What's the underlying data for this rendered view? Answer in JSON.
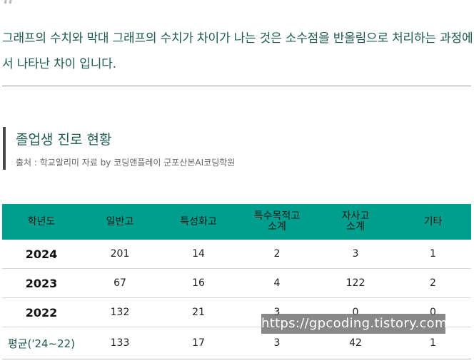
{
  "quote": {
    "mark": "“",
    "text": "그래프의 수치와 막대 그래프의 수치가 차이가 나는 것은 소수점을 반올림으로 처리하는 과정에서 나타난 차이 입니다."
  },
  "section": {
    "title": "졸업생 진로 현황",
    "source": "출처 : 학교알리미 자료 by 코딩앤플레이 군포산본AI코딩학원"
  },
  "table": {
    "headers": [
      "학년도",
      "일반고",
      "특성화고",
      "특수목적고\n소계",
      "자사고\n소계",
      "기타"
    ],
    "rows": [
      [
        "2024",
        "201",
        "14",
        "2",
        "3",
        "1"
      ],
      [
        "2023",
        "67",
        "16",
        "4",
        "122",
        "2"
      ],
      [
        "2022",
        "132",
        "21",
        "3",
        "0",
        "0"
      ],
      [
        "평균('24~22)",
        "133",
        "17",
        "3",
        "42",
        "1"
      ]
    ]
  },
  "watermark": "https://gpcoding.tistory.com",
  "colors": {
    "header_bg": "#009e8c",
    "accent_text": "#1d5a51",
    "section_bar": "#4a4a4a"
  }
}
